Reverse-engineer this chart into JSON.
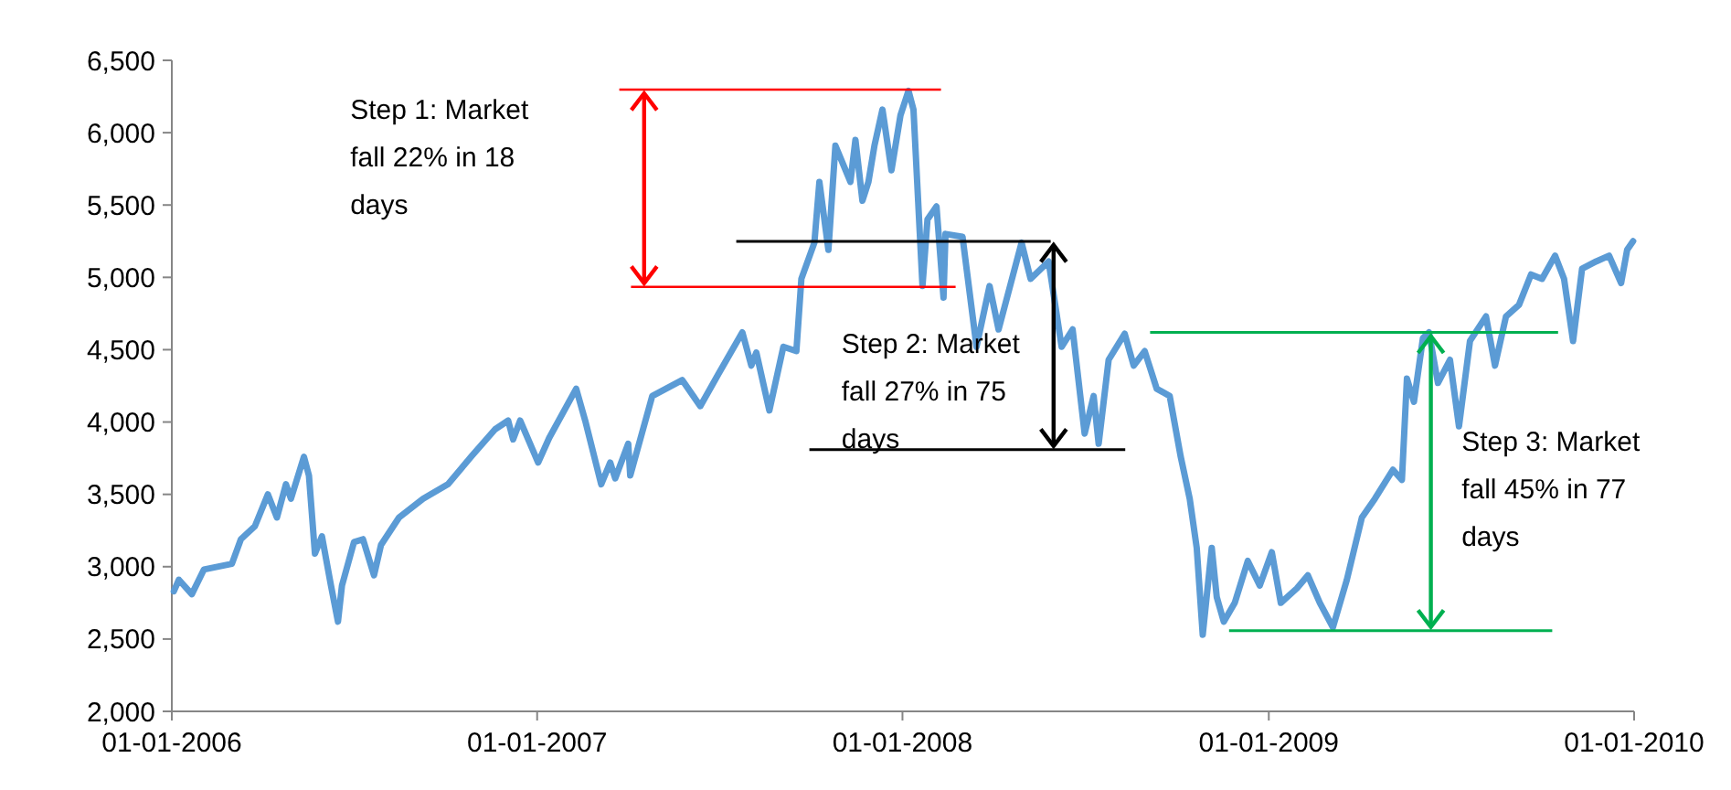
{
  "chart_data": {
    "type": "line",
    "x": [
      "2006-01-03",
      "2006-01-08",
      "2006-01-21",
      "2006-02-02",
      "2006-03-02",
      "2006-03-11",
      "2006-03-25",
      "2006-04-07",
      "2006-04-16",
      "2006-04-25",
      "2006-04-30",
      "2006-05-13",
      "2006-05-18",
      "2006-05-24",
      "2006-05-31",
      "2006-06-09",
      "2006-06-16",
      "2006-06-20",
      "2006-07-02",
      "2006-07-11",
      "2006-07-22",
      "2006-07-29",
      "2006-08-16",
      "2006-09-09",
      "2006-10-04",
      "2006-10-27",
      "2006-11-20",
      "2006-12-03",
      "2006-12-08",
      "2006-12-15",
      "2007-01-02",
      "2007-01-13",
      "2007-02-09",
      "2007-02-18",
      "2007-03-06",
      "2007-03-15",
      "2007-03-20",
      "2007-04-02",
      "2007-04-04",
      "2007-04-26",
      "2007-05-26",
      "2007-06-13",
      "2007-07-01",
      "2007-07-25",
      "2007-08-03",
      "2007-08-08",
      "2007-08-21",
      "2007-09-04",
      "2007-09-17",
      "2007-09-22",
      "2007-10-05",
      "2007-10-10",
      "2007-10-19",
      "2007-10-26",
      "2007-11-10",
      "2007-11-15",
      "2007-11-22",
      "2007-11-28",
      "2007-12-04",
      "2007-12-12",
      "2007-12-21",
      "2007-12-30",
      "2008-01-07",
      "2008-01-12",
      "2008-01-21",
      "2008-01-26",
      "2008-02-04",
      "2008-02-11",
      "2008-02-13",
      "2008-03-01",
      "2008-03-15",
      "2008-03-28",
      "2008-04-06",
      "2008-04-29",
      "2008-05-08",
      "2008-05-26",
      "2008-06-08",
      "2008-06-19",
      "2008-07-01",
      "2008-07-10",
      "2008-07-15",
      "2008-07-25",
      "2008-08-10",
      "2008-08-19",
      "2008-08-30",
      "2008-09-11",
      "2008-09-24",
      "2008-10-05",
      "2008-10-14",
      "2008-10-21",
      "2008-10-27",
      "2008-11-05",
      "2008-11-10",
      "2008-11-17",
      "2008-11-28",
      "2008-12-11",
      "2008-12-23",
      "2009-01-04",
      "2009-01-13",
      "2009-01-29",
      "2009-02-09",
      "2009-02-21",
      "2009-03-06",
      "2009-03-20",
      "2009-04-04",
      "2009-04-17",
      "2009-05-05",
      "2009-05-14",
      "2009-05-19",
      "2009-05-26",
      "2009-06-04",
      "2009-06-10",
      "2009-06-19",
      "2009-07-01",
      "2009-07-10",
      "2009-07-21",
      "2009-08-06",
      "2009-08-15",
      "2009-08-26",
      "2009-09-08",
      "2009-09-20",
      "2009-10-01",
      "2009-10-14",
      "2009-10-23",
      "2009-11-01",
      "2009-11-10",
      "2009-11-24",
      "2009-12-07",
      "2009-12-19",
      "2009-12-25",
      "2009-12-31"
    ],
    "series": [
      {
        "color": "#5b9bd5",
        "values": [
          2830,
          2910,
          2810,
          2980,
          3020,
          3190,
          3280,
          3500,
          3340,
          3570,
          3470,
          3760,
          3630,
          3090,
          3210,
          2870,
          2620,
          2870,
          3170,
          3190,
          2940,
          3150,
          3340,
          3470,
          3570,
          3760,
          3950,
          4010,
          3880,
          4010,
          3720,
          3890,
          4230,
          4010,
          3570,
          3720,
          3610,
          3850,
          3630,
          4180,
          4290,
          4110,
          4330,
          4620,
          4390,
          4480,
          4080,
          4520,
          4490,
          4990,
          5240,
          5660,
          5190,
          5910,
          5660,
          5950,
          5530,
          5660,
          5910,
          6160,
          5740,
          6120,
          6290,
          6160,
          4940,
          5400,
          5490,
          4860,
          5300,
          5280,
          4520,
          4940,
          4640,
          5240,
          4990,
          5110,
          4520,
          4640,
          3920,
          4180,
          3850,
          4430,
          4610,
          4390,
          4490,
          4230,
          4180,
          3760,
          3470,
          3130,
          2530,
          3130,
          2790,
          2620,
          2750,
          3040,
          2870,
          3100,
          2750,
          2850,
          2940,
          2750,
          2580,
          2910,
          3340,
          3470,
          3670,
          3600,
          4300,
          4140,
          4580,
          4620,
          4270,
          4430,
          3970,
          4560,
          4730,
          4390,
          4730,
          4810,
          5020,
          4990,
          5150,
          4990,
          4560,
          5060,
          5110,
          5150,
          4960,
          5190,
          5250
        ]
      }
    ],
    "xlim": [
      "2006-01-01",
      "2010-01-01"
    ],
    "xticks": [
      {
        "value": "2006-01-01",
        "label": "01-01-2006"
      },
      {
        "value": "2007-01-01",
        "label": "01-01-2007"
      },
      {
        "value": "2008-01-01",
        "label": "01-01-2008"
      },
      {
        "value": "2009-01-01",
        "label": "01-01-2009"
      },
      {
        "value": "2010-01-01",
        "label": "01-01-2010"
      }
    ],
    "ylim": [
      2000,
      6500
    ],
    "yticks": [
      {
        "value": 2000,
        "label": "2,000"
      },
      {
        "value": 2500,
        "label": "2,500"
      },
      {
        "value": 3000,
        "label": "3,000"
      },
      {
        "value": 3500,
        "label": "3,500"
      },
      {
        "value": 4000,
        "label": "4,000"
      },
      {
        "value": 4500,
        "label": "4,500"
      },
      {
        "value": 5000,
        "label": "5,000"
      },
      {
        "value": 5500,
        "label": "5,500"
      },
      {
        "value": 6000,
        "label": "6,000"
      },
      {
        "value": 6500,
        "label": "6,500"
      }
    ],
    "annotations": [
      "Step 1: Market fall 22% in 18 days",
      "Step 2: Market fall 27% in 75 days",
      "Step 3: Market fall 45% in 77 days"
    ],
    "grid": false,
    "marker": "none",
    "line_style": "solid"
  }
}
